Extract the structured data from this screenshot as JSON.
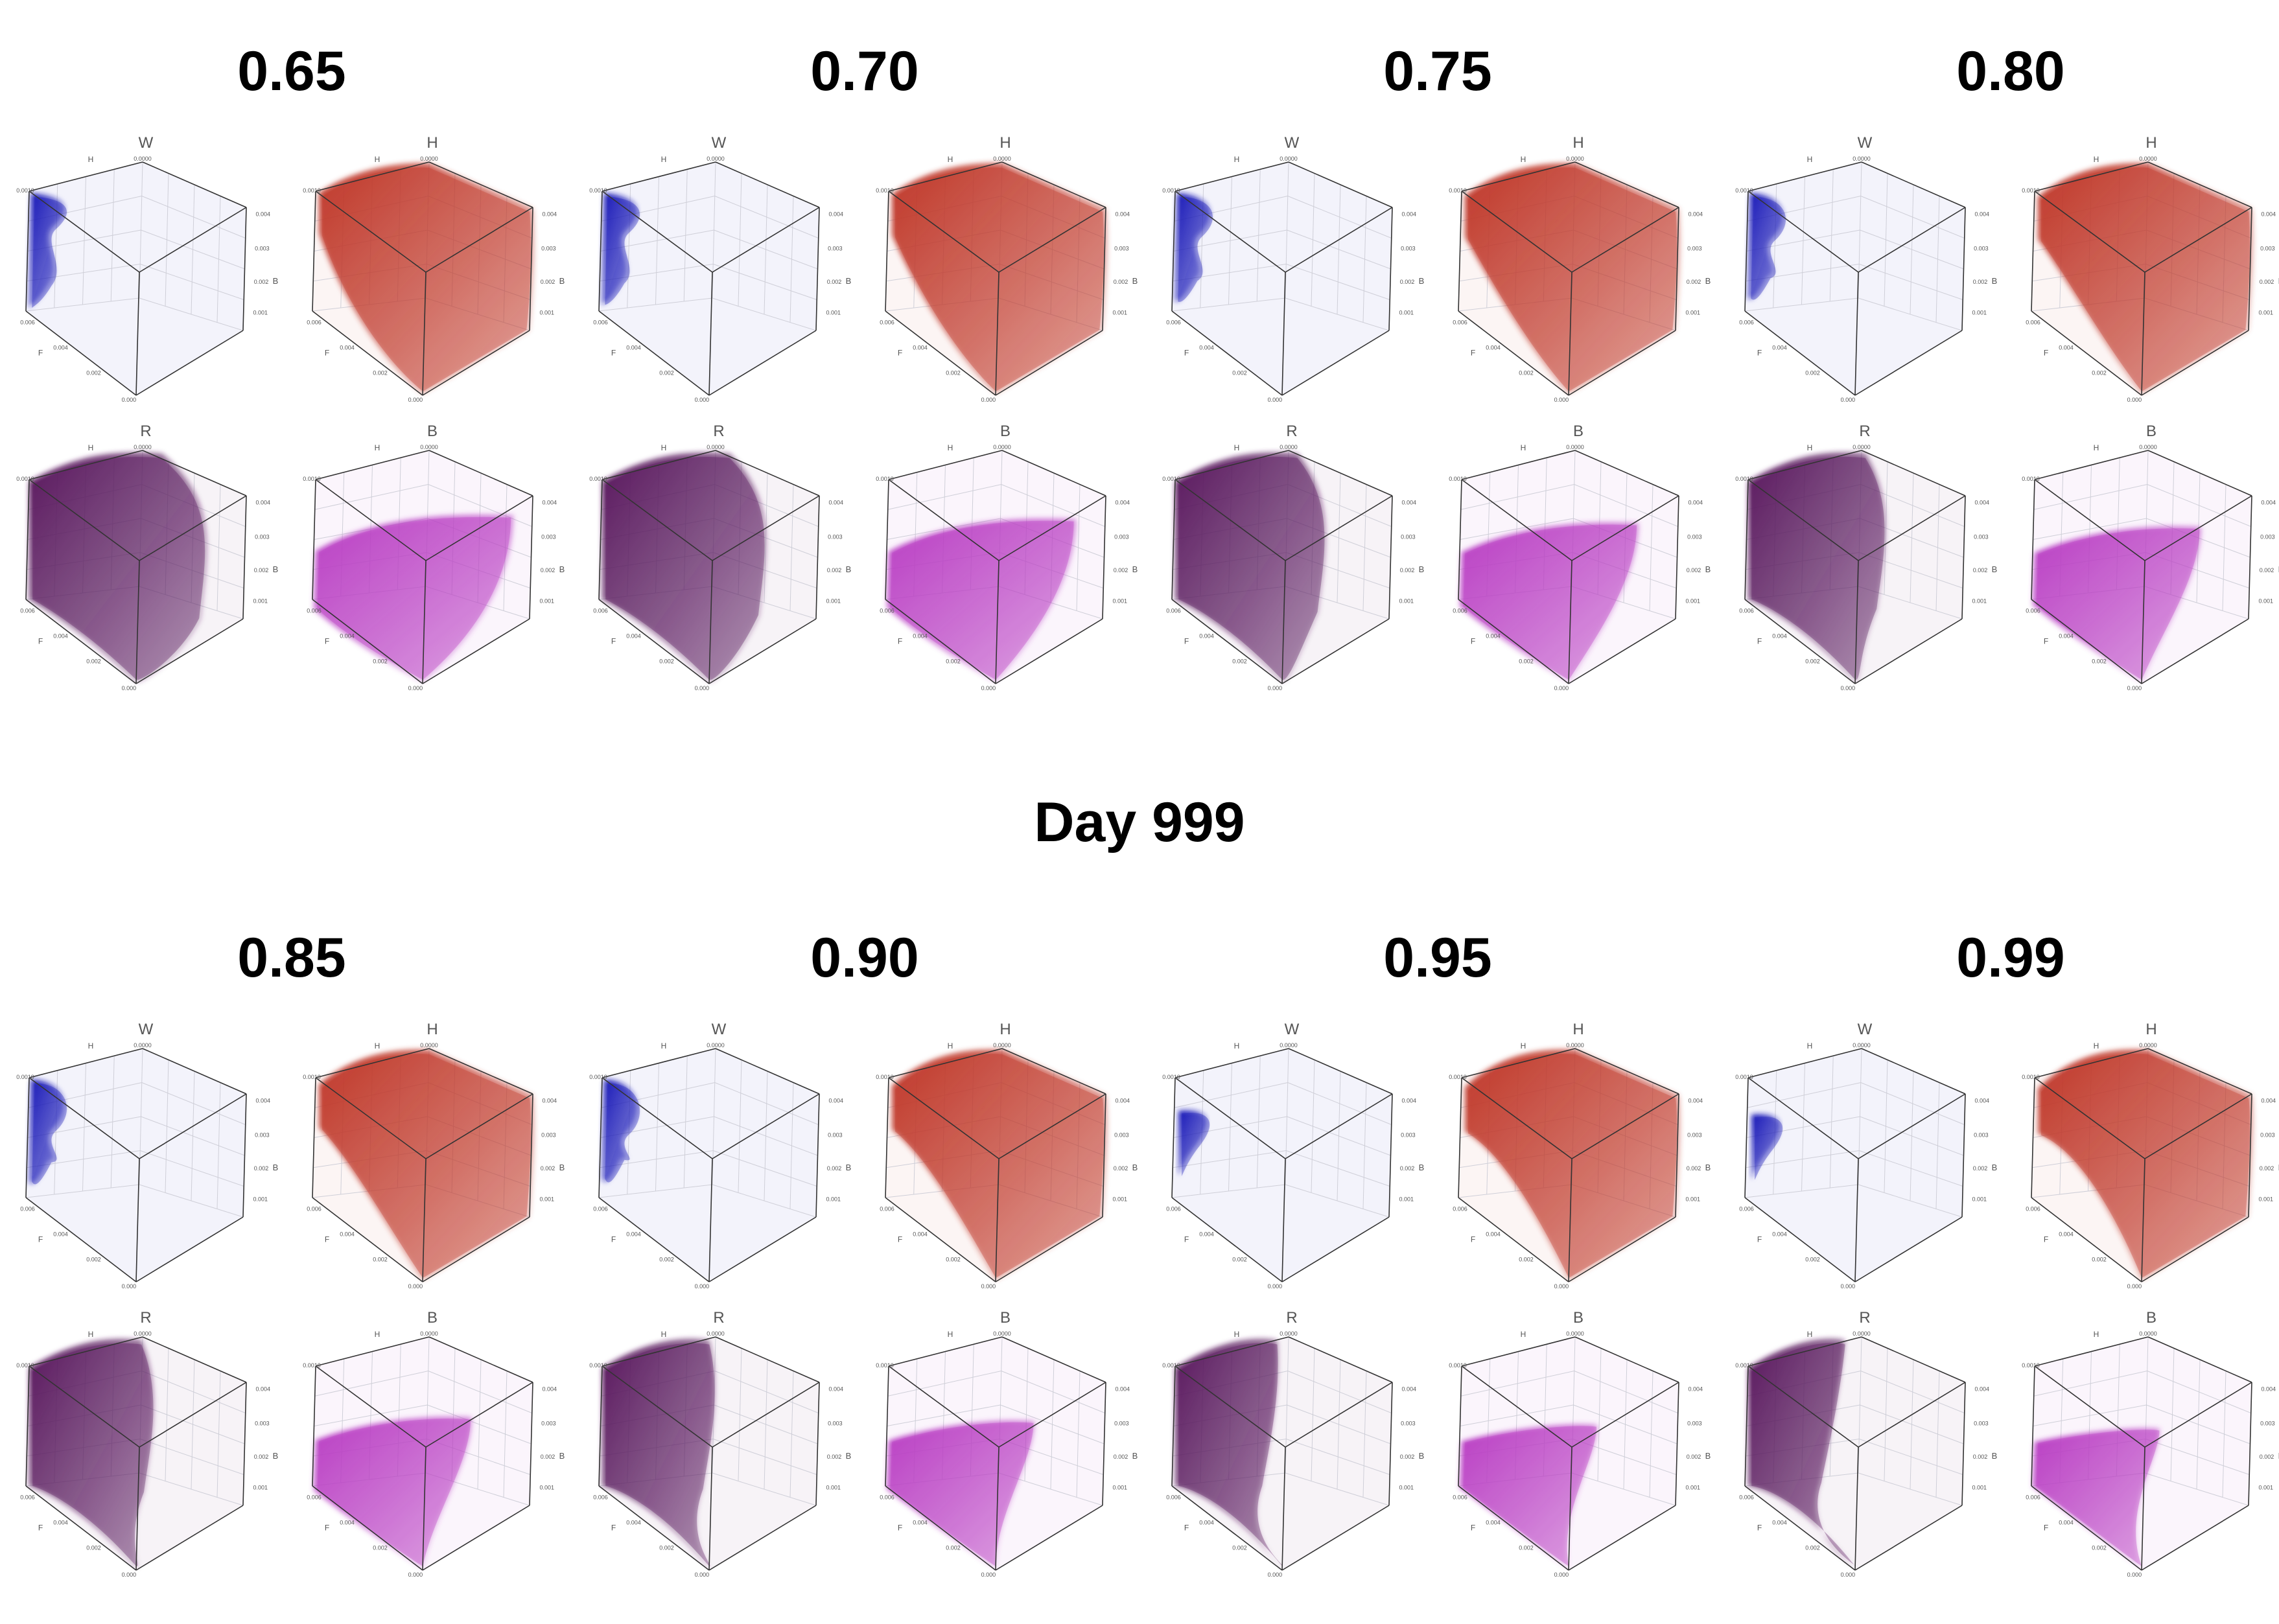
{
  "title": "Day 999",
  "colors": {
    "W": "#1a1ab8",
    "H": "#c0392b",
    "R": "#5a1a5e",
    "B": "#b93ec4"
  },
  "axis_labels": {
    "left_top": "H",
    "left": "F",
    "right": "B"
  },
  "ticks": {
    "h_top": "0.0000",
    "h_left": "0.0010",
    "f_a": "0.006",
    "f_b": "0.004",
    "f_c": "0.002",
    "f_d": "0.000",
    "b_a": "0.004",
    "b_b": "0.003",
    "b_c": "0.002",
    "b_d": "0.001"
  },
  "groups": [
    {
      "label": "0.65",
      "panels": [
        {
          "var": "W",
          "shape": 0
        },
        {
          "var": "H",
          "shape": 0
        },
        {
          "var": "R",
          "shape": 0
        },
        {
          "var": "B",
          "shape": 0
        }
      ]
    },
    {
      "label": "0.70",
      "panels": [
        {
          "var": "W",
          "shape": 1
        },
        {
          "var": "H",
          "shape": 1
        },
        {
          "var": "R",
          "shape": 1
        },
        {
          "var": "B",
          "shape": 1
        }
      ]
    },
    {
      "label": "0.75",
      "panels": [
        {
          "var": "W",
          "shape": 2
        },
        {
          "var": "H",
          "shape": 2
        },
        {
          "var": "R",
          "shape": 2
        },
        {
          "var": "B",
          "shape": 2
        }
      ]
    },
    {
      "label": "0.80",
      "panels": [
        {
          "var": "W",
          "shape": 3
        },
        {
          "var": "H",
          "shape": 3
        },
        {
          "var": "R",
          "shape": 3
        },
        {
          "var": "B",
          "shape": 3
        }
      ]
    },
    {
      "label": "0.85",
      "panels": [
        {
          "var": "W",
          "shape": 4
        },
        {
          "var": "H",
          "shape": 4
        },
        {
          "var": "R",
          "shape": 4
        },
        {
          "var": "B",
          "shape": 4
        }
      ]
    },
    {
      "label": "0.90",
      "panels": [
        {
          "var": "W",
          "shape": 5
        },
        {
          "var": "H",
          "shape": 5
        },
        {
          "var": "R",
          "shape": 5
        },
        {
          "var": "B",
          "shape": 5
        }
      ]
    },
    {
      "label": "0.95",
      "panels": [
        {
          "var": "W",
          "shape": 6
        },
        {
          "var": "H",
          "shape": 6
        },
        {
          "var": "R",
          "shape": 6
        },
        {
          "var": "B",
          "shape": 6
        }
      ]
    },
    {
      "label": "0.99",
      "panels": [
        {
          "var": "W",
          "shape": 7
        },
        {
          "var": "H",
          "shape": 7
        },
        {
          "var": "R",
          "shape": 7
        },
        {
          "var": "B",
          "shape": 7
        }
      ]
    }
  ]
}
